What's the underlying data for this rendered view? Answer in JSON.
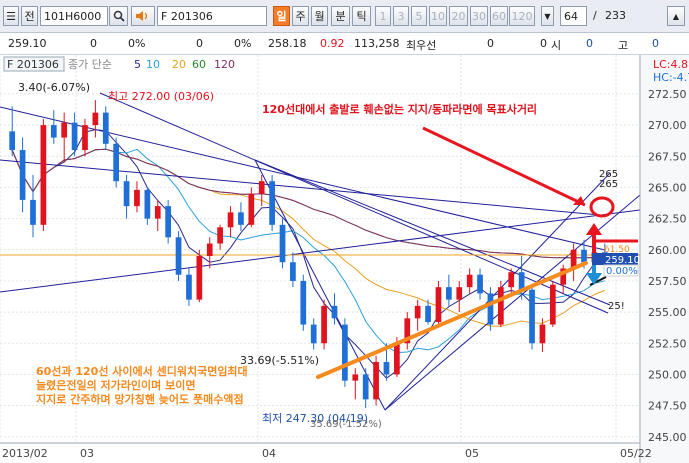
{
  "toolbar": {
    "menu_glyph": "☰",
    "screen_label": "전",
    "symbol_code": "101H6000",
    "search_icon": "search-icon",
    "speaker_icon": "speaker-icon",
    "product_name": "F 201306",
    "buttons": [
      {
        "label": "일",
        "active": true,
        "name": "period-day-button"
      },
      {
        "label": "주",
        "active": false,
        "name": "period-week-button"
      },
      {
        "label": "월",
        "active": false,
        "name": "period-month-button"
      },
      {
        "label": "분",
        "active": false,
        "name": "period-minute-button"
      },
      {
        "label": "틱",
        "active": false,
        "name": "period-tick-button"
      },
      {
        "label": "1",
        "active": false,
        "name": "interval-1-button"
      },
      {
        "label": "3",
        "active": false,
        "name": "interval-3-button"
      },
      {
        "label": "5",
        "active": false,
        "name": "interval-5-button"
      },
      {
        "label": "10",
        "active": false,
        "name": "interval-10-button"
      },
      {
        "label": "20",
        "active": false,
        "name": "interval-20-button"
      },
      {
        "label": "30",
        "active": false,
        "name": "interval-30-button"
      },
      {
        "label": "60",
        "active": false,
        "name": "interval-60-button"
      },
      {
        "label": "120",
        "active": false,
        "name": "interval-120-button"
      }
    ],
    "count_value": "64",
    "count_separator": "/",
    "count_total": "233"
  },
  "info": {
    "price": "259.10",
    "change1": "0",
    "pct1": "0%",
    "change2": "0",
    "pct2": "0%",
    "last": "258.18",
    "diff": "0.92",
    "volume": "113,258",
    "label_best": "최우선",
    "bid": "0",
    "ask": "0",
    "label_open": "시",
    "open": "0",
    "label_high": "고",
    "high": "0"
  },
  "chart": {
    "legend_symbol": "F 201306",
    "legend_ma_label": "종가 단순",
    "legend_ma_periods": [
      "5",
      "10",
      "20",
      "60",
      "120"
    ],
    "lc_label": "LC:4.81",
    "hc_label": "HC:-4.74",
    "top_label": "3.40(-6.07%)",
    "high_label": "최고 272.00 (03/06)",
    "low_label": "최저 247.30 (04/19)",
    "low_overlap": "35.69(-1.52%)",
    "mid_label": "33.69(-5.51%)",
    "annotation_top": "120선대에서 출발로 훼손없는 지지/동파라면에 목표사거리",
    "annotation_bottom": [
      "60선과 120선 사이에서 센디워치국면임최대",
      "늘렸은전일의 저가라인이며 보이면",
      "지지로 간주하며 망가칭핸 늦어도 풋매수액점"
    ],
    "fib_labels": [
      "265",
      "265",
      "25!"
    ],
    "cur_price_label": "259.10",
    "cur_price_label2": "0.00%",
    "ref_price": "61.50",
    "colors": {
      "up": "#e0141e",
      "down": "#1f6fd6",
      "ma5": "#2a2a8a",
      "ma10": "#2aa0d8",
      "ma20": "#e8a020",
      "ma60": "#2d8a2d",
      "ma120": "#8a2d6a",
      "trend": "#20209a",
      "orange": "#f58a1f",
      "arrow_red": "#e8141e",
      "hline": "#f0a020",
      "price_box": "#1f4fb0"
    }
  },
  "chart_data": {
    "type": "candlestick",
    "x_labels": [
      "2013/02",
      "03",
      "04",
      "05",
      "05/22"
    ],
    "y_ticks": [
      "272.50",
      "270.00",
      "267.50",
      "265.00",
      "262.50",
      "260.00",
      "257.50",
      "255.00",
      "252.50",
      "250.00",
      "247.50",
      "245.00"
    ],
    "ylim": [
      244.5,
      274.5
    ],
    "candles": [
      [
        269.5,
        271.5,
        267.5,
        268.0
      ],
      [
        268.0,
        269.0,
        263.0,
        264.0
      ],
      [
        264.0,
        266.0,
        261.0,
        262.0
      ],
      [
        262.0,
        270.5,
        261.5,
        270.0
      ],
      [
        270.0,
        271.2,
        268.5,
        269.0
      ],
      [
        269.0,
        271.0,
        267.0,
        270.2
      ],
      [
        270.2,
        271.0,
        267.5,
        268.0
      ],
      [
        268.0,
        270.5,
        267.5,
        270.0
      ],
      [
        270.0,
        272.0,
        269.0,
        271.0
      ],
      [
        271.0,
        271.5,
        268.0,
        268.5
      ],
      [
        268.5,
        269.0,
        265.0,
        265.5
      ],
      [
        265.5,
        266.0,
        262.5,
        263.5
      ],
      [
        263.5,
        265.5,
        263.0,
        264.8
      ],
      [
        264.8,
        265.0,
        262.0,
        262.5
      ],
      [
        262.5,
        264.0,
        261.5,
        263.5
      ],
      [
        263.5,
        264.0,
        260.5,
        261.0
      ],
      [
        261.0,
        261.5,
        257.5,
        258.0
      ],
      [
        258.0,
        258.5,
        255.5,
        256.0
      ],
      [
        256.0,
        260.0,
        255.8,
        259.5
      ],
      [
        259.5,
        261.0,
        258.5,
        260.5
      ],
      [
        260.5,
        262.0,
        260.0,
        261.8
      ],
      [
        261.8,
        263.5,
        261.0,
        263.0
      ],
      [
        263.0,
        263.8,
        261.5,
        262.0
      ],
      [
        262.0,
        265.0,
        261.8,
        264.5
      ],
      [
        264.5,
        266.0,
        263.5,
        265.5
      ],
      [
        265.5,
        266.0,
        261.5,
        262.0
      ],
      [
        262.0,
        262.5,
        258.5,
        259.0
      ],
      [
        259.0,
        259.8,
        257.0,
        257.5
      ],
      [
        257.5,
        258.0,
        253.5,
        254.0
      ],
      [
        254.0,
        254.5,
        252.0,
        252.5
      ],
      [
        252.5,
        256.0,
        252.0,
        255.5
      ],
      [
        255.5,
        256.5,
        254.0,
        254.5
      ],
      [
        254.0,
        254.5,
        249.0,
        249.5
      ],
      [
        249.5,
        250.5,
        248.0,
        250.0
      ],
      [
        250.0,
        250.5,
        247.3,
        248.0
      ],
      [
        248.0,
        251.5,
        247.5,
        251.0
      ],
      [
        251.0,
        252.5,
        249.5,
        250.0
      ],
      [
        250.0,
        253.0,
        249.8,
        252.5
      ],
      [
        252.5,
        255.0,
        252.0,
        254.5
      ],
      [
        254.5,
        256.0,
        253.5,
        255.5
      ],
      [
        255.5,
        256.0,
        254.0,
        254.2
      ],
      [
        254.2,
        257.5,
        254.0,
        257.0
      ],
      [
        257.0,
        258.0,
        255.5,
        256.0
      ],
      [
        256.0,
        257.5,
        255.0,
        257.0
      ],
      [
        257.0,
        258.5,
        256.5,
        258.0
      ],
      [
        258.0,
        258.5,
        256.0,
        256.5
      ],
      [
        256.5,
        257.0,
        253.5,
        254.0
      ],
      [
        254.0,
        257.5,
        253.8,
        257.0
      ],
      [
        257.0,
        258.5,
        256.5,
        258.2
      ],
      [
        258.2,
        259.5,
        256.0,
        256.8
      ],
      [
        256.8,
        257.0,
        252.0,
        252.5
      ],
      [
        252.5,
        254.5,
        251.8,
        254.0
      ],
      [
        254.0,
        257.5,
        253.8,
        257.2
      ],
      [
        257.2,
        258.8,
        256.5,
        258.5
      ],
      [
        258.5,
        260.5,
        257.5,
        260.0
      ],
      [
        260.0,
        260.8,
        258.5,
        259.0
      ],
      [
        259.0,
        260.2,
        258.2,
        259.8
      ],
      [
        259.8,
        260.5,
        258.5,
        259.1
      ]
    ],
    "ma_periods": [
      5,
      10,
      20,
      60,
      120
    ]
  }
}
